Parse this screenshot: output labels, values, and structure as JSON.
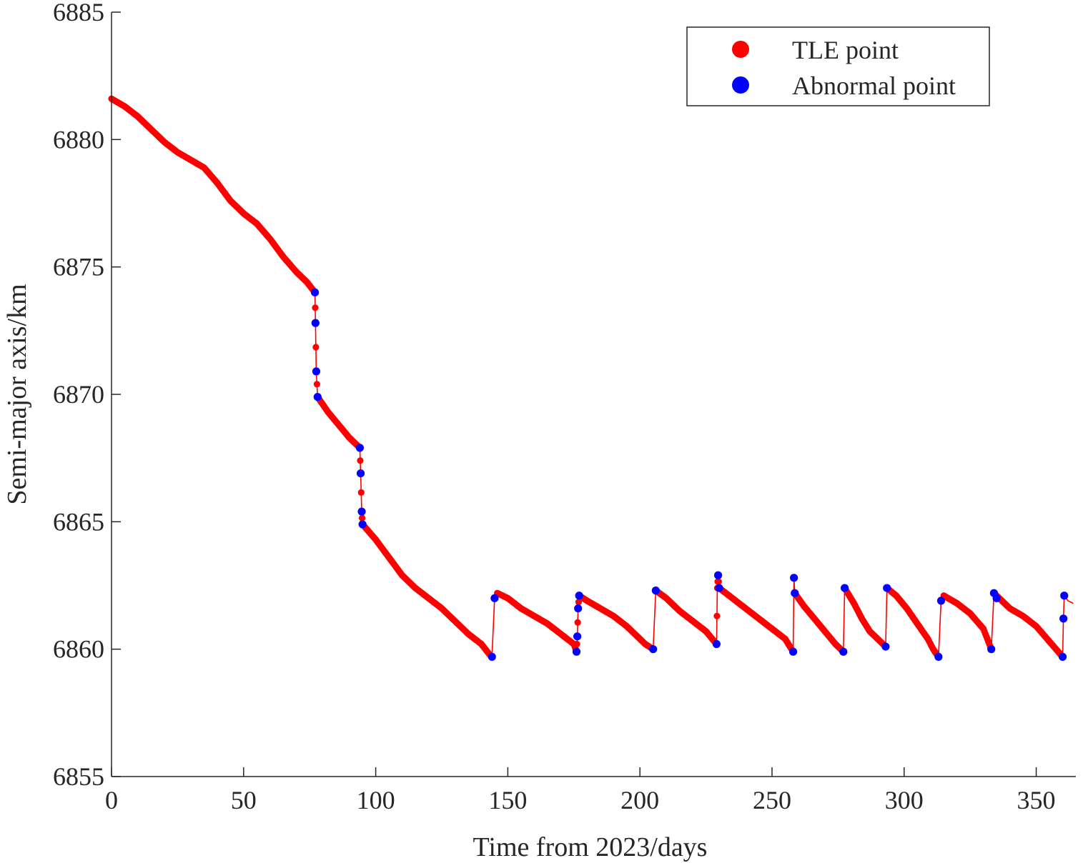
{
  "chart_data": {
    "type": "scatter",
    "xlabel": "Time from 2023/days",
    "ylabel": "Semi-major axis/km",
    "xlim": [
      0,
      365
    ],
    "ylim": [
      6855,
      6885
    ],
    "xticks": [
      0,
      50,
      100,
      150,
      200,
      250,
      300,
      350
    ],
    "yticks": [
      6855,
      6860,
      6865,
      6870,
      6875,
      6880,
      6885
    ],
    "grid": false,
    "legend_position": "top-right",
    "colors": {
      "tle": "#ff0000",
      "abnormal": "#0000ff",
      "axis": "#262626"
    },
    "series": [
      {
        "name": "TLE point",
        "kind": "line+markers",
        "segments": [
          [
            [
              0,
              6881.6
            ],
            [
              5,
              6881.3
            ],
            [
              10,
              6880.9
            ],
            [
              15,
              6880.4
            ],
            [
              20,
              6879.9
            ],
            [
              25,
              6879.5
            ],
            [
              30,
              6879.2
            ],
            [
              35,
              6878.9
            ],
            [
              40,
              6878.3
            ],
            [
              45,
              6877.6
            ],
            [
              50,
              6877.1
            ],
            [
              55,
              6876.7
            ],
            [
              60,
              6876.1
            ],
            [
              65,
              6875.4
            ],
            [
              70,
              6874.8
            ],
            [
              74,
              6874.4
            ],
            [
              77,
              6874.0
            ]
          ],
          [
            [
              77,
              6874.0
            ],
            [
              77.2,
              6872.8
            ],
            [
              77.5,
              6870.9
            ],
            [
              78,
              6869.9
            ]
          ],
          [
            [
              78,
              6869.9
            ],
            [
              82,
              6869.3
            ],
            [
              86,
              6868.8
            ],
            [
              90,
              6868.3
            ],
            [
              94,
              6867.9
            ]
          ],
          [
            [
              94,
              6867.9
            ],
            [
              94.3,
              6866.9
            ],
            [
              94.7,
              6865.4
            ],
            [
              95,
              6864.9
            ]
          ],
          [
            [
              95,
              6864.9
            ],
            [
              100,
              6864.3
            ],
            [
              105,
              6863.6
            ],
            [
              110,
              6862.9
            ],
            [
              115,
              6862.4
            ],
            [
              120,
              6862.0
            ],
            [
              125,
              6861.6
            ],
            [
              130,
              6861.1
            ],
            [
              135,
              6860.6
            ],
            [
              140,
              6860.2
            ],
            [
              143,
              6859.8
            ],
            [
              144,
              6859.7
            ]
          ],
          [
            [
              144,
              6859.7
            ],
            [
              145,
              6862.0
            ],
            [
              146,
              6862.2
            ]
          ],
          [
            [
              146,
              6862.2
            ],
            [
              150,
              6862.0
            ],
            [
              155,
              6861.6
            ],
            [
              160,
              6861.3
            ],
            [
              165,
              6861.0
            ],
            [
              170,
              6860.6
            ],
            [
              175,
              6860.2
            ],
            [
              176,
              6859.9
            ]
          ],
          [
            [
              176,
              6859.9
            ],
            [
              176.3,
              6860.5
            ],
            [
              176.6,
              6861.6
            ],
            [
              177,
              6862.1
            ]
          ],
          [
            [
              177,
              6862.1
            ],
            [
              180,
              6861.9
            ],
            [
              185,
              6861.6
            ],
            [
              190,
              6861.3
            ],
            [
              195,
              6860.9
            ],
            [
              200,
              6860.4
            ],
            [
              202,
              6860.2
            ],
            [
              205,
              6860.0
            ]
          ],
          [
            [
              205,
              6860.0
            ],
            [
              206,
              6862.3
            ]
          ],
          [
            [
              206,
              6862.3
            ],
            [
              210,
              6862.0
            ],
            [
              215,
              6861.5
            ],
            [
              220,
              6861.1
            ],
            [
              225,
              6860.7
            ],
            [
              229,
              6860.2
            ]
          ],
          [
            [
              229,
              6860.2
            ],
            [
              229.3,
              6862.4
            ],
            [
              229.6,
              6862.9
            ],
            [
              230,
              6862.4
            ]
          ],
          [
            [
              230,
              6862.4
            ],
            [
              235,
              6862.0
            ],
            [
              240,
              6861.6
            ],
            [
              245,
              6861.2
            ],
            [
              250,
              6860.8
            ],
            [
              255,
              6860.4
            ],
            [
              258,
              6859.9
            ]
          ],
          [
            [
              258,
              6859.9
            ],
            [
              258.3,
              6862.8
            ],
            [
              258.6,
              6862.2
            ]
          ],
          [
            [
              258.6,
              6862.2
            ],
            [
              262,
              6861.7
            ],
            [
              266,
              6861.2
            ],
            [
              270,
              6860.7
            ],
            [
              274,
              6860.2
            ],
            [
              277,
              6859.9
            ]
          ],
          [
            [
              277,
              6859.9
            ],
            [
              277.5,
              6862.4
            ]
          ],
          [
            [
              277.5,
              6862.4
            ],
            [
              281,
              6861.8
            ],
            [
              284,
              6861.2
            ],
            [
              287,
              6860.7
            ],
            [
              290,
              6860.4
            ],
            [
              293,
              6860.1
            ]
          ],
          [
            [
              293,
              6860.1
            ],
            [
              293.5,
              6862.4
            ]
          ],
          [
            [
              293.5,
              6862.4
            ],
            [
              297,
              6862.1
            ],
            [
              301,
              6861.6
            ],
            [
              305,
              6861.0
            ],
            [
              309,
              6860.4
            ],
            [
              311,
              6860.0
            ],
            [
              313,
              6859.7
            ]
          ],
          [
            [
              313,
              6859.7
            ],
            [
              314,
              6861.9
            ],
            [
              315,
              6862.1
            ]
          ],
          [
            [
              315,
              6862.1
            ],
            [
              320,
              6861.8
            ],
            [
              325,
              6861.4
            ],
            [
              330,
              6860.8
            ],
            [
              333,
              6860.0
            ]
          ],
          [
            [
              333,
              6860.0
            ],
            [
              334,
              6862.2
            ]
          ],
          [
            [
              334,
              6862.2
            ],
            [
              336,
              6862.0
            ],
            [
              340,
              6861.6
            ],
            [
              345,
              6861.3
            ],
            [
              350,
              6860.9
            ],
            [
              355,
              6860.3
            ],
            [
              360,
              6859.7
            ]
          ],
          [
            [
              360,
              6859.7
            ],
            [
              360.3,
              6861.2
            ],
            [
              360.6,
              6862.1
            ]
          ],
          [
            [
              360.6,
              6862.1
            ],
            [
              362,
              6861.9
            ],
            [
              364,
              6861.8
            ]
          ]
        ]
      },
      {
        "name": "Abnormal point",
        "kind": "markers",
        "points": [
          [
            77,
            6874.0
          ],
          [
            77.2,
            6872.8
          ],
          [
            77.5,
            6870.9
          ],
          [
            78,
            6869.9
          ],
          [
            94,
            6867.9
          ],
          [
            94.3,
            6866.9
          ],
          [
            94.7,
            6865.4
          ],
          [
            95,
            6864.9
          ],
          [
            144,
            6859.7
          ],
          [
            145,
            6862.0
          ],
          [
            176,
            6859.9
          ],
          [
            176.3,
            6860.5
          ],
          [
            176.6,
            6861.6
          ],
          [
            177,
            6862.1
          ],
          [
            205,
            6860.0
          ],
          [
            206,
            6862.3
          ],
          [
            229,
            6860.2
          ],
          [
            229.6,
            6862.9
          ],
          [
            230,
            6862.4
          ],
          [
            258,
            6859.9
          ],
          [
            258.3,
            6862.8
          ],
          [
            258.6,
            6862.2
          ],
          [
            277,
            6859.9
          ],
          [
            277.5,
            6862.4
          ],
          [
            293,
            6860.1
          ],
          [
            293.5,
            6862.4
          ],
          [
            313,
            6859.7
          ],
          [
            314,
            6861.9
          ],
          [
            333,
            6860.0
          ],
          [
            334,
            6862.2
          ],
          [
            335,
            6862.0
          ],
          [
            360,
            6859.7
          ],
          [
            360.3,
            6861.2
          ],
          [
            360.6,
            6862.1
          ]
        ]
      }
    ]
  }
}
